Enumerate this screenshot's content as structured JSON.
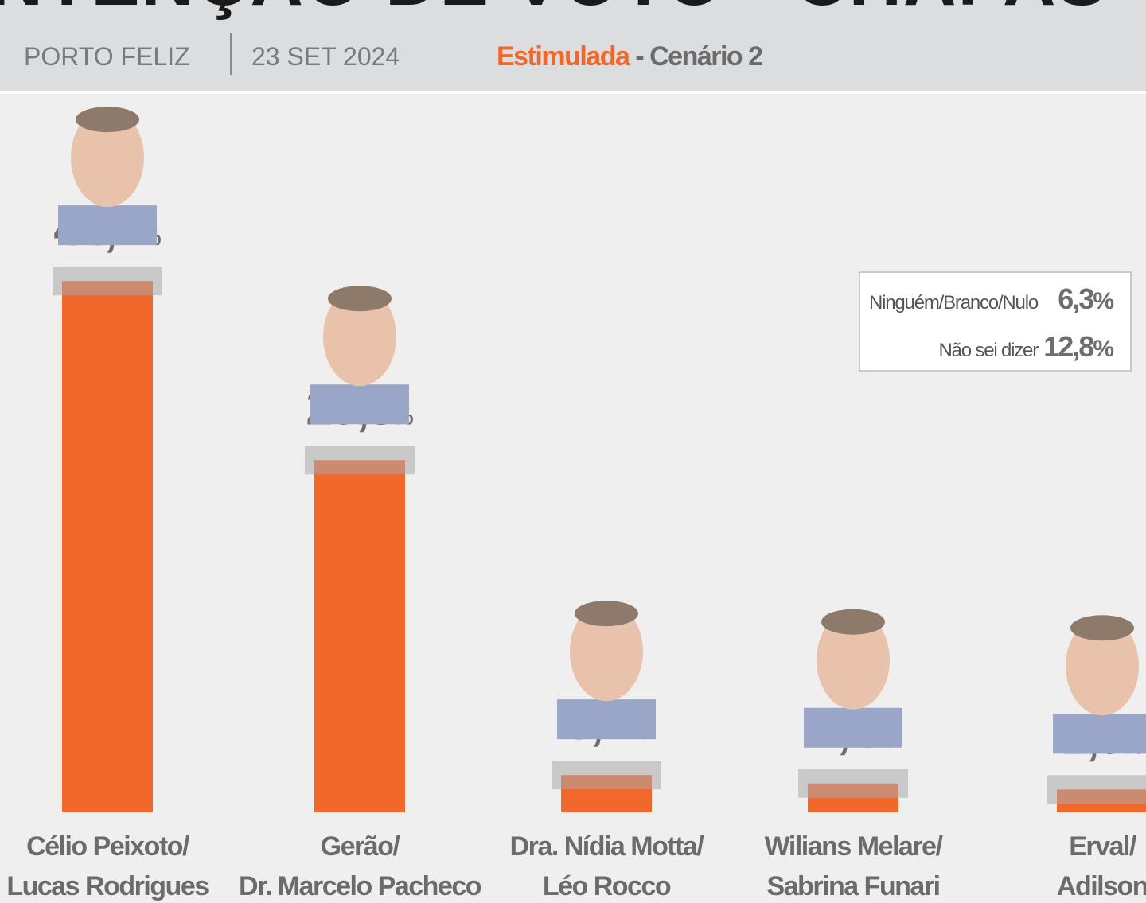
{
  "chart_data": {
    "type": "bar",
    "title": "INTENÇÃO DE VOTO - CHAPAS",
    "place": "PORTO FELIZ",
    "date": "23 SET 2024",
    "scenario_kind": "Estimulada",
    "scenario": " - Cenário 2",
    "categories": [
      [
        "Célio Peixoto/",
        "Lucas Rodrigues"
      ],
      [
        "Gerão/",
        "Dr. Marcelo Pacheco"
      ],
      [
        "Dra. Nídia Motta/",
        "Léo Rocco"
      ],
      [
        "Wilians Melare/",
        "Sabrina Funari"
      ],
      [
        "Erval/",
        "Adilson"
      ]
    ],
    "values": [
      44.2,
      29.3,
      3.1,
      2.4,
      1.9
    ],
    "value_labels": [
      "44,2%",
      "29,3%",
      "3,1%",
      "2,4%",
      "1,9%"
    ],
    "color": "#f2672a",
    "others": [
      {
        "name": "Ninguém/Branco/Nulo",
        "value_label": "6,3%"
      },
      {
        "name": "Não sei dizer",
        "value_label": "12,8%"
      }
    ]
  }
}
